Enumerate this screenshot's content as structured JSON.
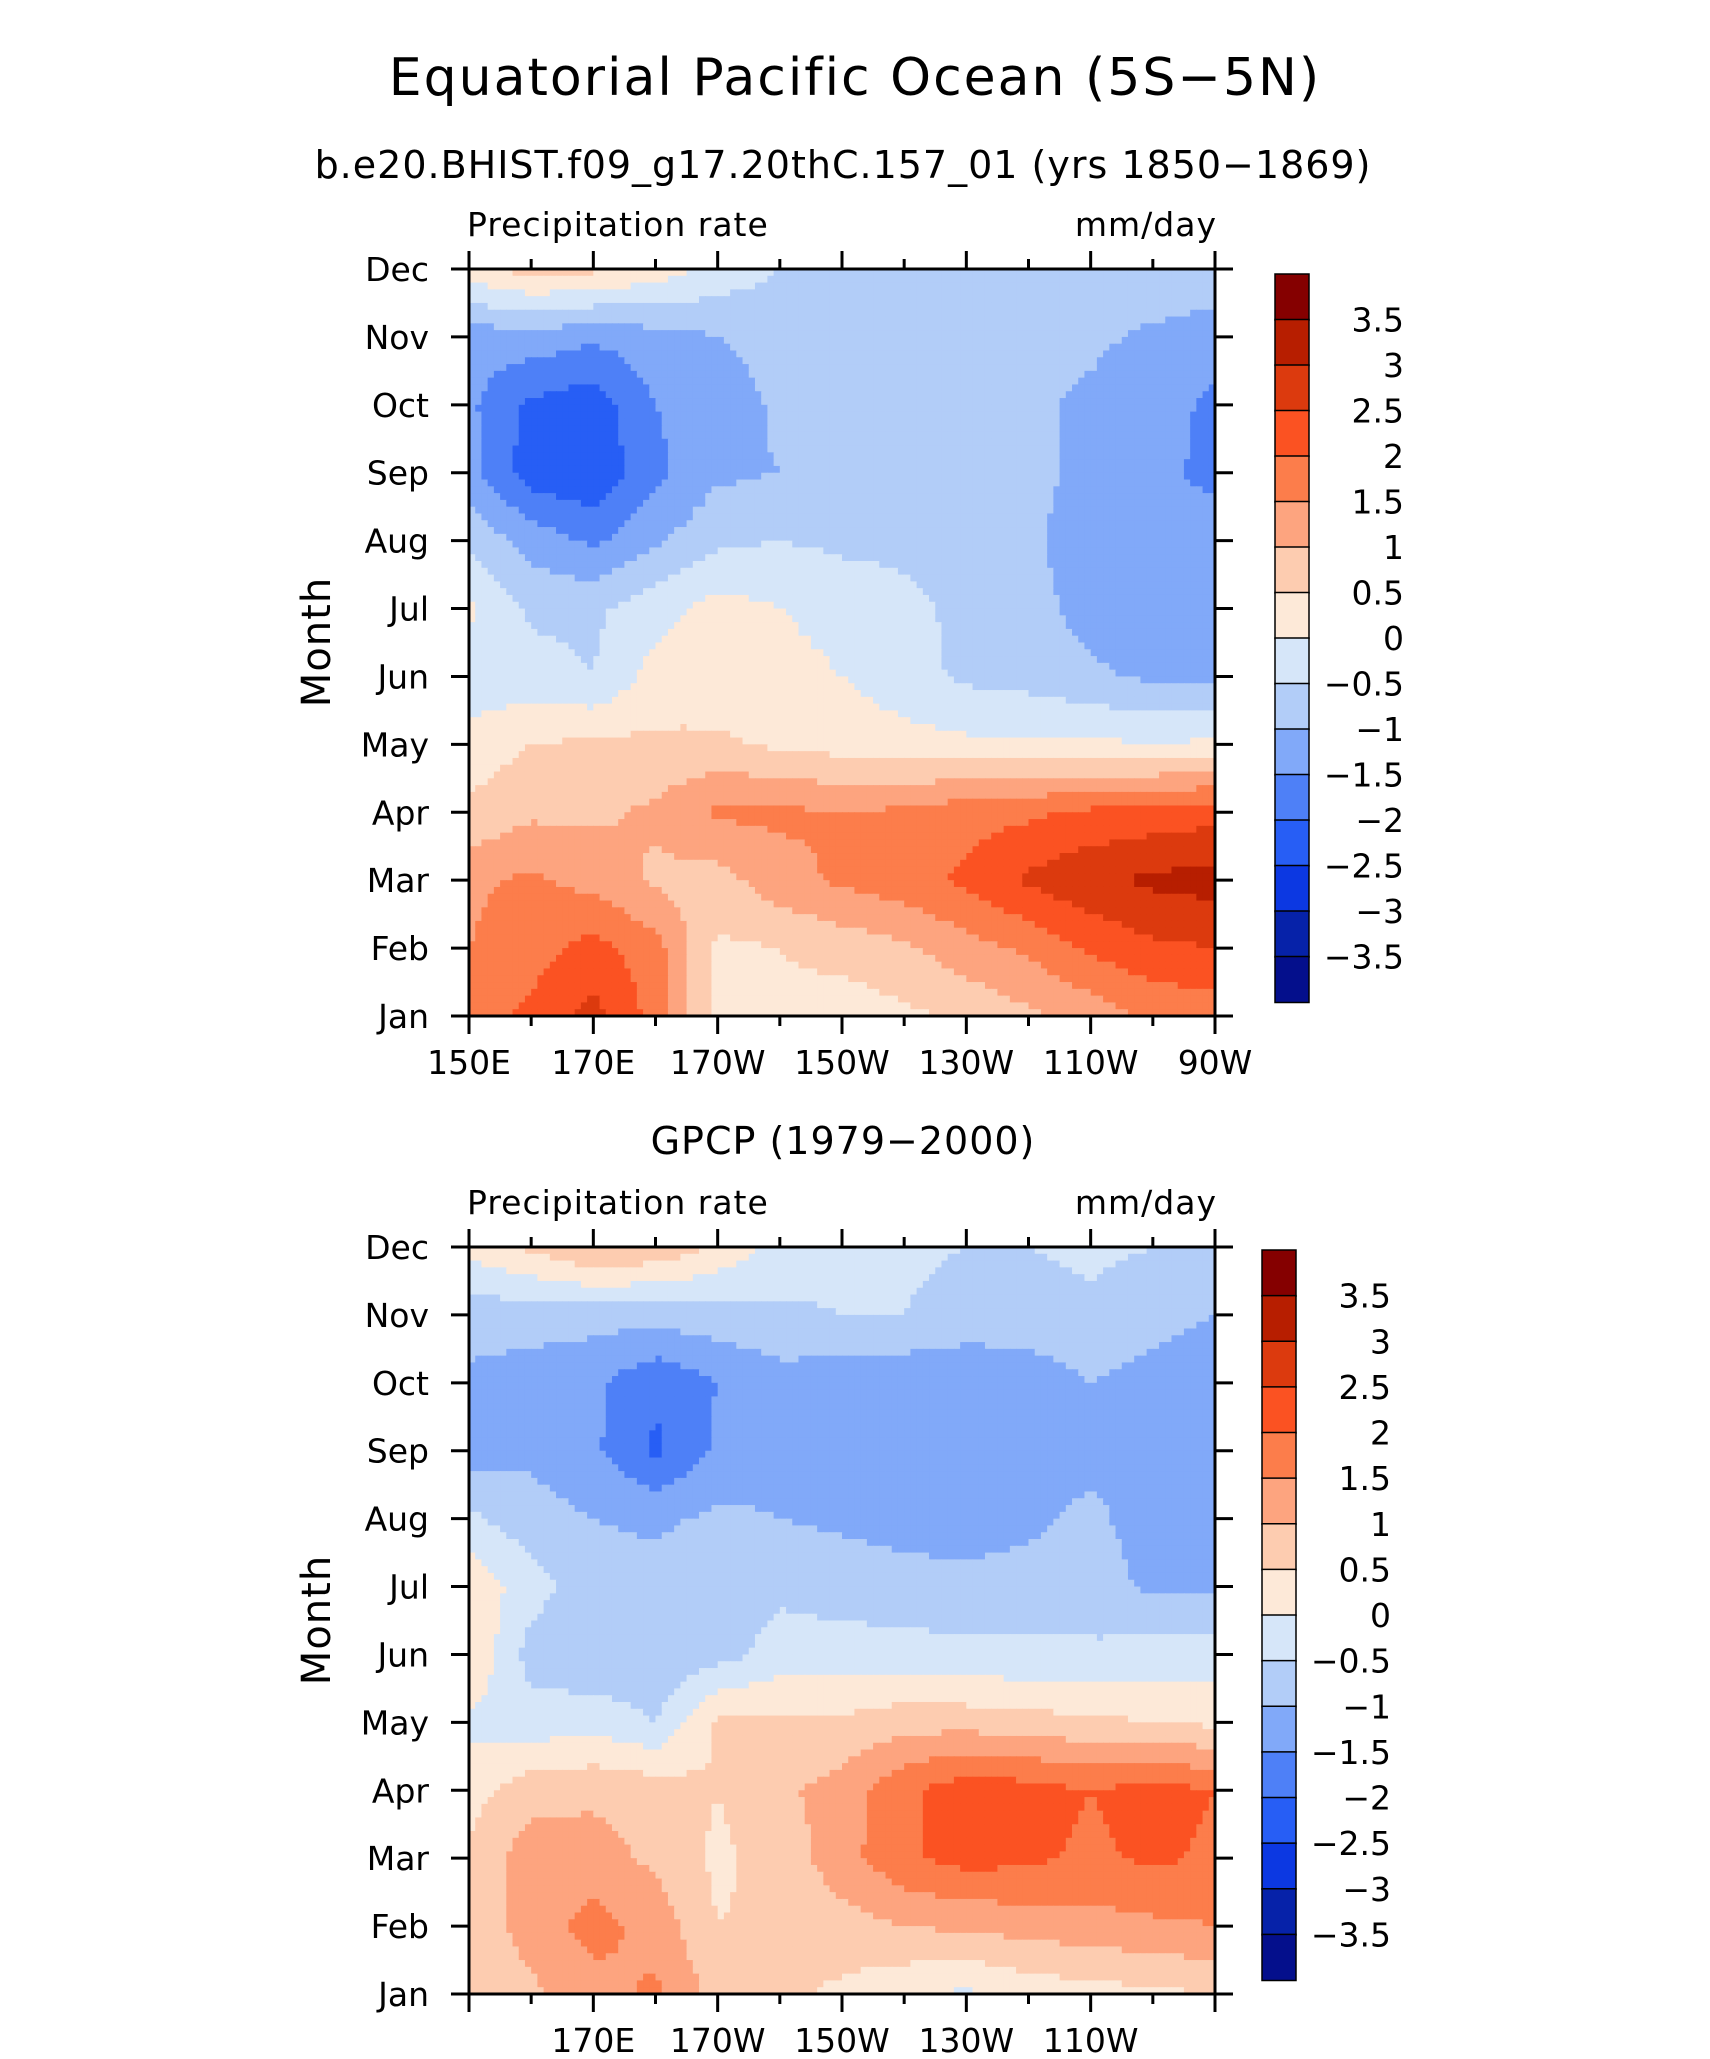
{
  "figure": {
    "title": "Equatorial Pacific Ocean (5S−5N)"
  },
  "colorbar_levels": [
    "3.5",
    "3",
    "2.5",
    "2",
    "1.5",
    "1",
    "0.5",
    "0",
    "−0.5",
    "−1",
    "−1.5",
    "−2",
    "−2.5",
    "−3",
    "−3.5"
  ],
  "colorbar_colors": [
    "#850000",
    "#b71e00",
    "#dc3a0e",
    "#fb5222",
    "#fc7d4b",
    "#fda47f",
    "#fdccb0",
    "#fde9d8",
    "#d6e6f9",
    "#b2cdf8",
    "#81a9f9",
    "#4e80f7",
    "#275ef5",
    "#0c38e2",
    "#0622a9",
    "#040f8c"
  ],
  "chart_data": [
    {
      "type": "heatmap",
      "title": "b.e20.BHIST.f09_g17.20thC.157_01 (yrs 1850−1869)",
      "left_label": "Precipitation rate",
      "right_label": "mm/day",
      "ylabel": "Month",
      "xlabel": "",
      "x_tick_labels": [
        "150E",
        "170E",
        "170W",
        "150W",
        "130W",
        "110W",
        "90W"
      ],
      "x_ticks_lon": [
        150,
        170,
        190,
        210,
        230,
        250,
        270
      ],
      "x_range_lon": [
        150,
        270
      ],
      "y_tick_labels": [
        "Jan",
        "Feb",
        "Mar",
        "Apr",
        "May",
        "Jun",
        "Jul",
        "Aug",
        "Sep",
        "Oct",
        "Nov",
        "Dec"
      ],
      "contour_levels": [
        -3.5,
        -3,
        -2.5,
        -2,
        -1.5,
        -1,
        -0.5,
        0,
        0.5,
        1,
        1.5,
        2,
        2.5,
        3,
        3.5
      ],
      "grid": false,
      "lon": [
        150,
        160,
        170,
        180,
        190,
        200,
        210,
        220,
        230,
        240,
        250,
        260,
        270
      ],
      "values": [
        [
          1.8,
          2.1,
          2.7,
          1.8,
          0.3,
          0.4,
          0.2,
          0.4,
          0.6,
          0.9,
          1.2,
          1.6,
          1.7
        ],
        [
          1.5,
          1.8,
          2.2,
          1.7,
          0.4,
          0.5,
          0.7,
          0.9,
          1.3,
          1.6,
          2.1,
          2.4,
          2.5
        ],
        [
          1.4,
          1.6,
          1.3,
          0.9,
          0.8,
          1.3,
          1.6,
          1.8,
          2.1,
          2.6,
          2.9,
          3.1,
          3.2
        ],
        [
          0.6,
          0.9,
          0.9,
          1.1,
          1.6,
          1.6,
          1.5,
          1.6,
          1.8,
          1.9,
          2.1,
          2.2,
          2.3
        ],
        [
          0.2,
          0.5,
          0.6,
          0.6,
          0.6,
          0.4,
          0.3,
          0.2,
          0.1,
          0.1,
          0.1,
          0.0,
          0.1
        ],
        [
          -0.3,
          -0.3,
          -0.5,
          0.2,
          0.2,
          0.2,
          0.0,
          -0.3,
          -0.6,
          -0.7,
          -0.9,
          -1.1,
          -1.1
        ],
        [
          0.1,
          -0.6,
          -0.6,
          -0.2,
          0.2,
          0.0,
          -0.2,
          -0.4,
          -0.6,
          -0.8,
          -1.2,
          -1.3,
          -1.2
        ],
        [
          -0.6,
          -1.2,
          -1.6,
          -1.1,
          -0.6,
          -0.5,
          -0.6,
          -0.6,
          -0.7,
          -0.9,
          -1.3,
          -1.4,
          -1.3
        ],
        [
          -1.3,
          -2.3,
          -2.4,
          -1.6,
          -1.1,
          -1.0,
          -0.9,
          -0.9,
          -0.9,
          -0.8,
          -1.2,
          -1.4,
          -1.6
        ],
        [
          -1.4,
          -2.1,
          -2.3,
          -1.5,
          -1.3,
          -0.9,
          -0.8,
          -0.8,
          -0.8,
          -0.9,
          -1.1,
          -1.3,
          -1.6
        ],
        [
          -1.3,
          -1.2,
          -1.4,
          -1.2,
          -1.0,
          -0.8,
          -0.8,
          -0.9,
          -0.9,
          -0.8,
          -0.9,
          -1.1,
          -1.3
        ],
        [
          0.3,
          0.7,
          0.6,
          0.3,
          -0.2,
          -0.5,
          -0.8,
          -0.9,
          -0.9,
          -0.8,
          -0.7,
          -0.6,
          -0.6
        ]
      ]
    },
    {
      "type": "heatmap",
      "title": "GPCP (1979−2000)",
      "left_label": "Precipitation rate",
      "right_label": "mm/day",
      "ylabel": "Month",
      "xlabel": "",
      "x_tick_labels": [
        "170E",
        "170W",
        "150W",
        "130W",
        "110W"
      ],
      "x_ticks_lon": [
        170,
        190,
        210,
        230,
        250
      ],
      "x_range_lon": [
        150,
        270
      ],
      "y_tick_labels": [
        "Jan",
        "Feb",
        "Mar",
        "Apr",
        "May",
        "Jun",
        "Jul",
        "Aug",
        "Sep",
        "Oct",
        "Nov",
        "Dec"
      ],
      "contour_levels": [
        -3.5,
        -3,
        -2.5,
        -2,
        -1.5,
        -1,
        -0.5,
        0,
        0.5,
        1,
        1.5,
        2,
        2.5,
        3,
        3.5
      ],
      "grid": false,
      "lon": [
        150,
        160,
        170,
        180,
        190,
        200,
        210,
        220,
        230,
        240,
        250,
        260,
        270
      ],
      "values": [
        [
          0.6,
          0.9,
          1.3,
          1.6,
          0.8,
          0.6,
          0.4,
          0.1,
          -0.1,
          0.2,
          0.3,
          0.4,
          0.5
        ],
        [
          0.7,
          1.2,
          1.7,
          1.3,
          0.5,
          0.6,
          0.8,
          1.0,
          1.1,
          1.2,
          1.3,
          1.4,
          1.5
        ],
        [
          0.6,
          1.3,
          1.2,
          0.9,
          0.4,
          0.7,
          1.3,
          1.9,
          2.2,
          2.1,
          1.9,
          2.1,
          1.9
        ],
        [
          0.3,
          0.8,
          0.9,
          0.8,
          0.5,
          0.9,
          1.2,
          1.9,
          2.3,
          2.2,
          2.0,
          2.2,
          2.0
        ],
        [
          -0.1,
          -0.3,
          -0.2,
          -0.5,
          0.6,
          0.6,
          0.6,
          0.8,
          0.8,
          0.7,
          0.6,
          0.5,
          0.4
        ],
        [
          0.5,
          -0.7,
          -0.9,
          -0.9,
          -0.7,
          -0.3,
          -0.3,
          -0.3,
          -0.4,
          -0.4,
          -0.4,
          -0.3,
          -0.3
        ],
        [
          0.4,
          -0.3,
          -0.8,
          -0.8,
          -0.7,
          -0.6,
          -0.7,
          -0.8,
          -0.8,
          -0.8,
          -0.8,
          -1.1,
          -1.1
        ],
        [
          -0.4,
          -0.8,
          -1.0,
          -1.1,
          -0.9,
          -1.0,
          -1.1,
          -1.2,
          -1.3,
          -1.1,
          -0.9,
          -1.2,
          -1.3
        ],
        [
          -1.2,
          -1.1,
          -1.4,
          -2.1,
          -1.4,
          -1.1,
          -1.3,
          -1.4,
          -1.4,
          -1.3,
          -1.1,
          -1.2,
          -1.4
        ],
        [
          -1.1,
          -1.2,
          -1.4,
          -1.9,
          -1.5,
          -1.2,
          -1.3,
          -1.4,
          -1.4,
          -1.3,
          -1.0,
          -1.2,
          -1.4
        ],
        [
          -0.8,
          -0.8,
          -0.8,
          -0.8,
          -0.7,
          -0.6,
          -0.5,
          -0.5,
          -0.7,
          -0.7,
          -0.6,
          -0.8,
          -1.0
        ],
        [
          0.2,
          0.6,
          1.1,
          0.9,
          0.4,
          -0.2,
          -0.3,
          -0.4,
          -0.5,
          -0.5,
          -0.4,
          -0.5,
          -0.5
        ]
      ]
    }
  ]
}
